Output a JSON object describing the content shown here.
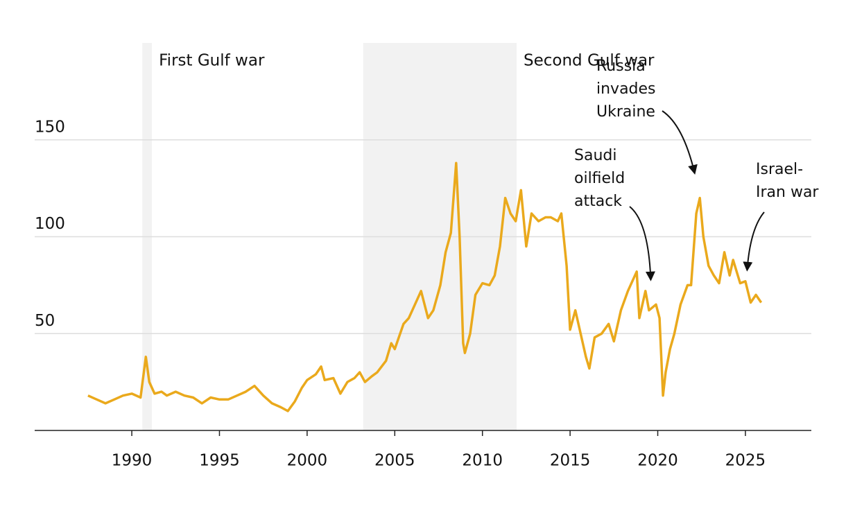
{
  "chart_data": {
    "type": "line",
    "x": [
      1987.5,
      1988,
      1988.5,
      1989,
      1989.5,
      1990,
      1990.5,
      1990.8,
      1991,
      1991.3,
      1991.7,
      1992,
      1992.5,
      1993,
      1993.5,
      1994,
      1994.5,
      1995,
      1995.5,
      1996,
      1996.5,
      1997,
      1997.5,
      1998,
      1998.5,
      1998.9,
      1999.3,
      1999.7,
      2000,
      2000.5,
      2000.8,
      2001,
      2001.5,
      2001.9,
      2002.3,
      2002.7,
      2003,
      2003.3,
      2003.7,
      2004,
      2004.5,
      2004.8,
      2005,
      2005.5,
      2005.8,
      2006,
      2006.5,
      2006.9,
      2007.2,
      2007.6,
      2007.9,
      2008.2,
      2008.5,
      2008.7,
      2008.9,
      2009,
      2009.3,
      2009.6,
      2010,
      2010.4,
      2010.7,
      2011,
      2011.3,
      2011.6,
      2011.9,
      2012.2,
      2012.5,
      2012.8,
      2013.2,
      2013.6,
      2013.9,
      2014.3,
      2014.5,
      2014.8,
      2015,
      2015.3,
      2015.6,
      2015.9,
      2016.1,
      2016.4,
      2016.8,
      2017.2,
      2017.5,
      2017.9,
      2018.3,
      2018.8,
      2018.95,
      2019.3,
      2019.5,
      2019.9,
      2020.1,
      2020.3,
      2020.45,
      2020.7,
      2020.95,
      2021.3,
      2021.7,
      2021.9,
      2022.2,
      2022.4,
      2022.6,
      2022.9,
      2023.2,
      2023.5,
      2023.8,
      2024.1,
      2024.3,
      2024.7,
      2025,
      2025.3,
      2025.6,
      2025.9
    ],
    "series": [
      {
        "color": "#eaa91c",
        "values": [
          18,
          16,
          14,
          16,
          18,
          19,
          17,
          38,
          25,
          19,
          20,
          18,
          20,
          18,
          17,
          14,
          17,
          16,
          16,
          18,
          20,
          23,
          18,
          14,
          12,
          10,
          15,
          22,
          26,
          29,
          33,
          26,
          27,
          19,
          25,
          27,
          30,
          25,
          28,
          30,
          36,
          45,
          42,
          55,
          58,
          62,
          72,
          58,
          62,
          75,
          92,
          102,
          138,
          100,
          45,
          40,
          50,
          70,
          76,
          75,
          80,
          95,
          120,
          112,
          108,
          124,
          95,
          112,
          108,
          110,
          110,
          108,
          112,
          85,
          52,
          62,
          50,
          38,
          32,
          48,
          50,
          55,
          46,
          62,
          72,
          82,
          58,
          72,
          62,
          65,
          58,
          18,
          30,
          42,
          50,
          65,
          75,
          75,
          112,
          120,
          100,
          85,
          80,
          76,
          92,
          80,
          88,
          76,
          77,
          66,
          70,
          66
        ]
      }
    ],
    "xlim": [
      1984.46,
      2028.76
    ],
    "xticks": [
      1990,
      1995,
      2000,
      2005,
      2010,
      2015,
      2020,
      2025
    ],
    "ylim": [
      0,
      200
    ],
    "yticks": [
      50,
      100,
      150
    ],
    "grid": true,
    "shading": [
      {
        "label": "First Gulf war",
        "start": 1990.6,
        "end": 1991.15
      },
      {
        "label": "Second Gulf war",
        "start": 2003.2,
        "end": 2011.95
      }
    ],
    "annotations": [
      {
        "lines": [
          "Saudi",
          "oilfield",
          "attack"
        ],
        "x": 2019.6,
        "y": 78
      },
      {
        "lines": [
          "Russia",
          "invades",
          "Ukraine"
        ],
        "x": 2022.1,
        "y": 133
      },
      {
        "lines": [
          "Israel-",
          "Iran war"
        ],
        "x": 2025.1,
        "y": 83
      }
    ]
  }
}
